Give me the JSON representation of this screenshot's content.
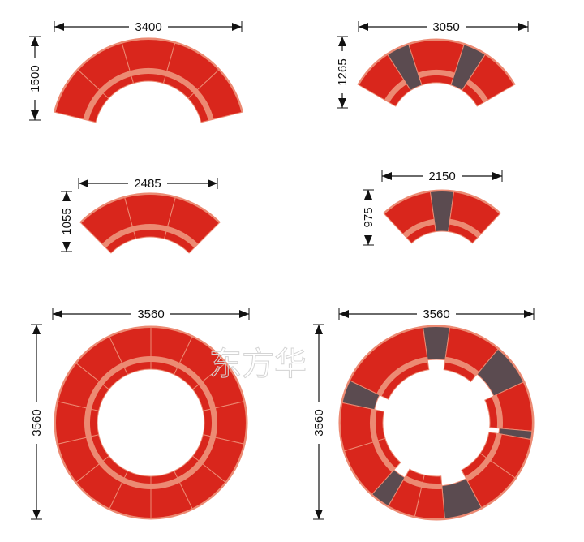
{
  "colors": {
    "seat": "#d9261c",
    "corner": "#5b4b50",
    "rim": "#ec8a73",
    "stripe": "#ec8a73",
    "line": "#111111"
  },
  "watermark": "东方华",
  "layouts": [
    {
      "width_label": "3400",
      "height_label": "1500",
      "segments": [
        "seat",
        "seat",
        "seat",
        "seat",
        "seat"
      ]
    },
    {
      "width_label": "3050",
      "height_label": "1265",
      "segments": [
        "seat",
        "corner",
        "seat",
        "corner",
        "seat"
      ]
    },
    {
      "width_label": "2485",
      "height_label": "1055",
      "segments": [
        "seat",
        "seat",
        "seat"
      ]
    },
    {
      "width_label": "2150",
      "height_label": "975",
      "segments": [
        "seat",
        "corner",
        "seat"
      ]
    },
    {
      "width_label": "3560",
      "height_label": "3560",
      "segments": [
        "seat",
        "seat",
        "seat",
        "seat",
        "seat",
        "seat",
        "seat",
        "seat",
        "seat",
        "seat",
        "seat",
        "seat",
        "seat",
        "seat"
      ]
    },
    {
      "width_label": "3560",
      "height_label": "3560",
      "segments": [
        "corner",
        "seat",
        "corner",
        "seat",
        "corner",
        "seat",
        "seat",
        "corner",
        "seat",
        "seat",
        "corner",
        "seat",
        "seat",
        "corner",
        "seat"
      ]
    }
  ]
}
